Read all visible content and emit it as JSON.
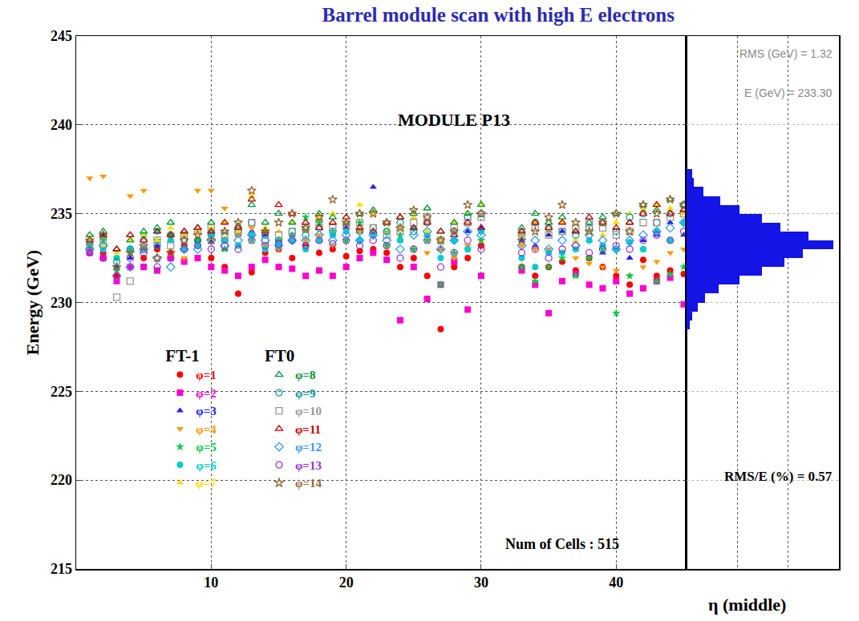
{
  "chart_data": [
    {
      "type": "scatter",
      "title": "Barrel module scan with high E electrons",
      "x_label": "η (middle)",
      "y_label": "Energy (GeV)",
      "annotations": [
        "MODULE P13",
        "Num of Cells : 515"
      ],
      "x": [
        1,
        2,
        3,
        4,
        5,
        6,
        7,
        8,
        9,
        10,
        11,
        12,
        13,
        14,
        15,
        16,
        17,
        18,
        19,
        20,
        21,
        22,
        23,
        24,
        25,
        26,
        27,
        28,
        29,
        30,
        33,
        34,
        35,
        36,
        37,
        38,
        39,
        40,
        41,
        42,
        43,
        44,
        45
      ],
      "xlim": [
        0,
        45.2
      ],
      "xticks": [
        10,
        20,
        30,
        40
      ],
      "ylim": [
        215,
        245
      ],
      "yticks": [
        215,
        220,
        225,
        230,
        235,
        240,
        245
      ],
      "grid": true,
      "legend": "lower left",
      "series": [
        {
          "name": "φ=1",
          "group": "FT-1",
          "color": "#ff0000",
          "marker": "circle",
          "values": [
            233.0,
            232.8,
            231.5,
            232.0,
            232.5,
            233.0,
            232.8,
            233.2,
            233.5,
            232.5,
            232.0,
            230.5,
            231.7,
            232.8,
            233.0,
            232.5,
            233.2,
            232.8,
            233.0,
            232.6,
            232.9,
            233.0,
            232.8,
            232.0,
            232.5,
            231.5,
            228.5,
            232.0,
            232.5,
            233.2,
            232.0,
            231.5,
            232.0,
            232.3,
            231.8,
            232.5,
            232.0,
            231.5,
            231.0,
            232.4,
            231.5,
            231.8,
            231.6
          ]
        },
        {
          "name": "φ=2",
          "group": "FT-1",
          "color": "#ff00cc",
          "marker": "square",
          "values": [
            232.8,
            232.5,
            231.2,
            232.0,
            232.0,
            231.8,
            232.5,
            232.3,
            232.5,
            232.0,
            231.8,
            231.5,
            232.0,
            232.4,
            232.0,
            231.9,
            231.5,
            231.8,
            231.5,
            232.0,
            232.5,
            232.8,
            232.4,
            229.0,
            232.0,
            230.2,
            231.0,
            232.3,
            229.6,
            231.5,
            231.8,
            231.0,
            229.4,
            231.2,
            231.6,
            231.0,
            230.8,
            231.2,
            230.5,
            230.8,
            231.2,
            231.4,
            229.9
          ]
        },
        {
          "name": "φ=3",
          "group": "FT-1",
          "color": "#2222ee",
          "marker": "triangle-up",
          "values": [
            233.5,
            233.8,
            232.0,
            232.5,
            233.0,
            233.2,
            233.5,
            233.8,
            233.5,
            233.4,
            233.0,
            233.8,
            234.0,
            233.8,
            233.5,
            233.8,
            234.0,
            233.5,
            233.8,
            234.2,
            234.0,
            236.5,
            234.0,
            233.5,
            234.2,
            233.8,
            233.0,
            233.5,
            234.0,
            234.2,
            233.5,
            233.2,
            233.8,
            234.0,
            233.0,
            233.5,
            232.8,
            233.0,
            232.5,
            233.5,
            233.8,
            234.5,
            233.8
          ]
        },
        {
          "name": "φ=4",
          "group": "FT-1",
          "color": "#ff9900",
          "marker": "triangle-down",
          "values": [
            237.0,
            237.1,
            232.5,
            236.0,
            236.3,
            233.5,
            233.8,
            232.5,
            236.3,
            236.3,
            235.3,
            233.8,
            234.2,
            233.2,
            233.0,
            233.5,
            233.5,
            233.8,
            233.2,
            233.5,
            234.0,
            233.8,
            233.2,
            233.5,
            233.0,
            232.8,
            233.0,
            232.5,
            233.2,
            233.5,
            233.2,
            233.0,
            233.0,
            232.8,
            232.5,
            232.2,
            232.0,
            231.8,
            231.5,
            232.0,
            232.3,
            232.8,
            233.0
          ]
        },
        {
          "name": "φ=5",
          "group": "FT-1",
          "color": "#00cc44",
          "marker": "star",
          "values": [
            233.2,
            233.5,
            231.8,
            232.8,
            233.0,
            233.5,
            233.8,
            233.0,
            233.5,
            234.0,
            233.0,
            233.2,
            233.5,
            234.0,
            233.5,
            233.8,
            234.8,
            234.5,
            234.0,
            233.5,
            234.5,
            234.0,
            233.2,
            233.8,
            233.0,
            233.5,
            231.0,
            232.8,
            233.0,
            233.5,
            232.0,
            231.2,
            232.0,
            232.5,
            231.5,
            232.5,
            233.0,
            229.4,
            231.5,
            233.0,
            231.2,
            231.6,
            232.0
          ]
        },
        {
          "name": "φ=6",
          "group": "FT-1",
          "color": "#00cccc",
          "marker": "circle",
          "values": [
            233.4,
            233.0,
            232.5,
            233.0,
            233.8,
            234.0,
            233.5,
            233.0,
            233.2,
            233.8,
            233.5,
            233.2,
            233.8,
            233.0,
            233.2,
            233.5,
            233.0,
            233.5,
            233.8,
            234.0,
            233.5,
            233.8,
            234.0,
            233.5,
            234.2,
            233.8,
            232.5,
            233.5,
            233.0,
            234.0,
            232.5,
            232.0,
            232.8,
            232.8,
            233.0,
            233.5,
            233.2,
            233.0,
            233.4,
            233.0,
            234.0,
            233.5,
            234.5
          ]
        },
        {
          "name": "φ=7",
          "group": "FT-1",
          "color": "#ffdd00",
          "marker": "triangle-up",
          "values": [
            233.6,
            233.2,
            232.8,
            233.5,
            233.8,
            233.5,
            234.2,
            233.8,
            234.0,
            234.2,
            234.5,
            234.0,
            236.0,
            234.2,
            234.0,
            234.5,
            234.0,
            234.8,
            235.0,
            234.5,
            235.5,
            235.0,
            234.0,
            234.2,
            234.8,
            234.0,
            233.5,
            234.5,
            235.0,
            235.5,
            233.8,
            234.5,
            234.0,
            234.5,
            233.5,
            234.0,
            233.8,
            234.5,
            235.0,
            235.2,
            235.5,
            235.3,
            235.0
          ]
        },
        {
          "name": "φ=8",
          "group": "FT0",
          "color": "#009933",
          "marker": "triangle-up-open",
          "values": [
            233.8,
            234.0,
            233.0,
            233.5,
            234.0,
            234.2,
            234.5,
            234.0,
            234.2,
            234.5,
            234.0,
            234.3,
            235.5,
            234.5,
            235.0,
            234.5,
            234.2,
            235.0,
            234.8,
            234.5,
            235.0,
            235.2,
            234.5,
            234.8,
            235.0,
            235.3,
            234.0,
            234.5,
            235.0,
            235.5,
            234.2,
            235.0,
            234.5,
            234.8,
            234.0,
            234.5,
            234.8,
            235.0,
            234.5,
            235.5,
            235.2,
            235.8,
            235.5
          ]
        },
        {
          "name": "φ=9",
          "group": "FT0",
          "color": "#009999",
          "marker": "circle-open",
          "values": [
            233.0,
            233.2,
            232.3,
            233.0,
            233.5,
            233.2,
            233.8,
            233.5,
            233.5,
            233.8,
            233.5,
            234.0,
            234.5,
            233.8,
            233.5,
            234.0,
            233.8,
            234.2,
            234.0,
            234.3,
            234.0,
            234.2,
            234.0,
            234.5,
            234.0,
            234.5,
            233.5,
            234.0,
            234.8,
            235.0,
            233.8,
            234.5,
            234.2,
            234.0,
            233.8,
            234.2,
            234.5,
            234.0,
            234.8,
            235.0,
            234.5,
            235.0,
            235.5
          ]
        },
        {
          "name": "φ=10",
          "group": "FT0",
          "color": "#999999",
          "marker": "square-open",
          "values": [
            233.2,
            233.5,
            230.3,
            231.2,
            233.0,
            233.5,
            233.2,
            233.8,
            234.0,
            234.2,
            233.8,
            234.0,
            234.5,
            233.5,
            233.8,
            234.0,
            234.2,
            234.5,
            234.2,
            234.3,
            234.5,
            234.2,
            233.8,
            234.0,
            234.5,
            234.8,
            233.5,
            234.2,
            234.5,
            234.8,
            234.0,
            234.2,
            233.8,
            234.0,
            234.2,
            234.5,
            234.2,
            233.8,
            234.0,
            234.5,
            234.5,
            234.8,
            235.0
          ]
        },
        {
          "name": "φ=11",
          "group": "FT0",
          "color": "#cc0000",
          "marker": "triangle-up-open",
          "values": [
            233.5,
            233.8,
            233.0,
            233.8,
            233.5,
            234.0,
            233.8,
            234.0,
            234.2,
            234.0,
            234.5,
            234.2,
            235.8,
            234.0,
            235.5,
            235.0,
            234.5,
            234.2,
            234.5,
            234.8,
            234.2,
            234.0,
            234.5,
            234.8,
            234.2,
            234.5,
            234.0,
            233.8,
            234.5,
            234.2,
            234.0,
            234.5,
            234.2,
            234.5,
            234.0,
            234.8,
            234.5,
            234.2,
            234.5,
            235.0,
            235.5,
            235.0,
            235.2
          ]
        },
        {
          "name": "φ=12",
          "group": "FT0",
          "color": "#3399ff",
          "marker": "diamond-open",
          "values": [
            233.0,
            233.2,
            231.5,
            232.0,
            233.0,
            232.5,
            232.0,
            233.0,
            233.0,
            233.5,
            233.2,
            233.5,
            233.8,
            233.5,
            233.2,
            233.5,
            233.5,
            233.8,
            233.5,
            233.8,
            233.5,
            233.8,
            233.5,
            233.0,
            233.8,
            234.0,
            233.0,
            233.5,
            234.0,
            233.8,
            233.2,
            233.5,
            233.0,
            233.5,
            233.2,
            233.8,
            233.5,
            233.0,
            233.5,
            233.8,
            234.0,
            234.2,
            234.5
          ]
        },
        {
          "name": "φ=13",
          "group": "FT0",
          "color": "#9933cc",
          "marker": "circle-open",
          "values": [
            232.8,
            232.5,
            231.5,
            232.5,
            232.8,
            232.0,
            232.5,
            233.0,
            233.2,
            233.0,
            233.2,
            233.0,
            233.5,
            233.2,
            233.3,
            233.5,
            233.2,
            233.5,
            233.3,
            233.5,
            233.2,
            233.5,
            233.2,
            232.5,
            233.0,
            233.5,
            232.0,
            232.8,
            233.5,
            233.0,
            232.8,
            233.0,
            232.5,
            233.0,
            233.2,
            232.8,
            233.0,
            233.2,
            233.0,
            233.5,
            233.8,
            233.5,
            234.0
          ]
        },
        {
          "name": "φ=14",
          "group": "FT0",
          "color": "#996633",
          "marker": "star-open",
          "values": [
            233.5,
            233.8,
            232.0,
            232.8,
            233.2,
            232.5,
            232.8,
            233.5,
            233.8,
            233.5,
            234.0,
            234.5,
            236.3,
            234.0,
            234.5,
            235.0,
            234.2,
            234.8,
            235.8,
            234.5,
            235.0,
            235.0,
            234.5,
            234.2,
            235.2,
            234.8,
            233.5,
            234.0,
            235.5,
            235.0,
            233.5,
            234.0,
            234.8,
            235.5,
            234.5,
            234.0,
            234.5,
            235.0,
            234.0,
            235.5,
            235.0,
            235.8,
            235.5
          ]
        }
      ]
    },
    {
      "type": "histogram",
      "orientation": "horizontal",
      "annotations": [
        "RMS (GeV) = 1.32",
        "E (GeV) = 233.30",
        "RMS/E (%) = 0.57"
      ],
      "bins": [
        228.5,
        229.0,
        229.5,
        230.0,
        230.5,
        231.0,
        231.5,
        232.0,
        232.5,
        233.0,
        233.5,
        234.0,
        234.5,
        235.0,
        235.5,
        236.0,
        236.5,
        237.0,
        237.5
      ],
      "counts": [
        2,
        3,
        6,
        10,
        17,
        28,
        40,
        52,
        62,
        78,
        65,
        50,
        40,
        28,
        18,
        9,
        4,
        3
      ],
      "color": "#1414e6",
      "xlim": [
        0,
        81
      ],
      "xticks": [
        27,
        54
      ],
      "ylim": [
        215,
        245
      ],
      "yticks": [
        215,
        220,
        225,
        230,
        235,
        240,
        245
      ],
      "grid": true,
      "tick_labels": false
    }
  ]
}
